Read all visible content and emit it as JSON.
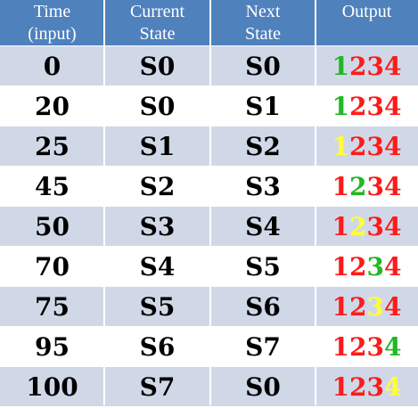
{
  "colors": {
    "header_bg": "#4f81bd",
    "band_odd": "#d0d8e8",
    "band_even": "#ffffff",
    "digit_on": "#22b822",
    "digit_off": "#ff1a1a",
    "digit_amber": "#ffff33"
  },
  "table": {
    "headers": [
      "Time\n(input)",
      "Current\nState",
      "Next\nState",
      "Output"
    ],
    "rows": [
      {
        "time": "0",
        "current": "S0",
        "next": "S0",
        "output": [
          {
            "d": "1",
            "c": "green"
          },
          {
            "d": "2",
            "c": "red"
          },
          {
            "d": "3",
            "c": "red"
          },
          {
            "d": "4",
            "c": "red"
          }
        ]
      },
      {
        "time": "20",
        "current": "S0",
        "next": "S1",
        "output": [
          {
            "d": "1",
            "c": "green"
          },
          {
            "d": "2",
            "c": "red"
          },
          {
            "d": "3",
            "c": "red"
          },
          {
            "d": "4",
            "c": "red"
          }
        ]
      },
      {
        "time": "25",
        "current": "S1",
        "next": "S2",
        "output": [
          {
            "d": "1",
            "c": "yellow"
          },
          {
            "d": "2",
            "c": "red"
          },
          {
            "d": "3",
            "c": "red"
          },
          {
            "d": "4",
            "c": "red"
          }
        ]
      },
      {
        "time": "45",
        "current": "S2",
        "next": "S3",
        "output": [
          {
            "d": "1",
            "c": "red"
          },
          {
            "d": "2",
            "c": "green"
          },
          {
            "d": "3",
            "c": "red"
          },
          {
            "d": "4",
            "c": "red"
          }
        ]
      },
      {
        "time": "50",
        "current": "S3",
        "next": "S4",
        "output": [
          {
            "d": "1",
            "c": "red"
          },
          {
            "d": "2",
            "c": "yellow"
          },
          {
            "d": "3",
            "c": "red"
          },
          {
            "d": "4",
            "c": "red"
          }
        ]
      },
      {
        "time": "70",
        "current": "S4",
        "next": "S5",
        "output": [
          {
            "d": "1",
            "c": "red"
          },
          {
            "d": "2",
            "c": "red"
          },
          {
            "d": "3",
            "c": "green"
          },
          {
            "d": "4",
            "c": "red"
          }
        ]
      },
      {
        "time": "75",
        "current": "S5",
        "next": "S6",
        "output": [
          {
            "d": "1",
            "c": "red"
          },
          {
            "d": "2",
            "c": "red"
          },
          {
            "d": "3",
            "c": "yellow"
          },
          {
            "d": "4",
            "c": "red"
          }
        ]
      },
      {
        "time": "95",
        "current": "S6",
        "next": "S7",
        "output": [
          {
            "d": "1",
            "c": "red"
          },
          {
            "d": "2",
            "c": "red"
          },
          {
            "d": "3",
            "c": "red"
          },
          {
            "d": "4",
            "c": "green"
          }
        ]
      },
      {
        "time": "100",
        "current": "S7",
        "next": "S0",
        "output": [
          {
            "d": "1",
            "c": "red"
          },
          {
            "d": "2",
            "c": "red"
          },
          {
            "d": "3",
            "c": "red"
          },
          {
            "d": "4",
            "c": "yellow"
          }
        ]
      }
    ]
  }
}
